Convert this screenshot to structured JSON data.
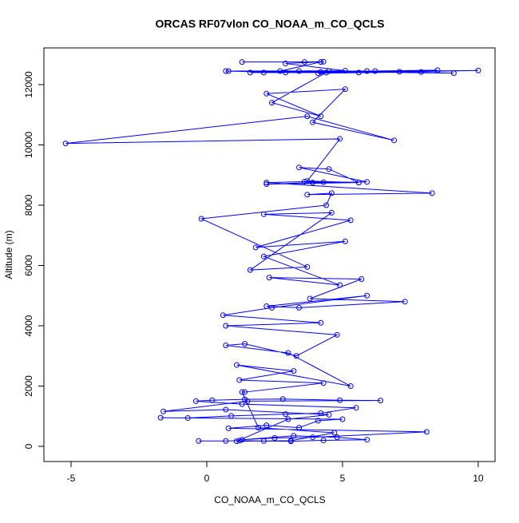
{
  "chart_data": {
    "type": "line",
    "title": "ORCAS RF07vlon CO_NOAA_m_CO_QCLS",
    "x_label": "CO_NOAA_m_CO_QCLS",
    "y_label": "Altitude (m)",
    "color": "#0000ff",
    "x": [
      -0.3,
      0.7,
      1.2,
      2.1,
      3.1,
      4.3,
      5.9,
      4.8,
      3.2,
      1.3,
      2.5,
      3.9,
      8.1,
      0.8,
      2.2,
      3.4,
      4.1,
      5,
      -1.7,
      -0.7,
      0.9,
      2.9,
      4.2,
      5.5,
      1.3,
      -0.4,
      0.2,
      1.4,
      2.8,
      4.9,
      6.4,
      1.5,
      -1.6,
      0.7,
      4.5,
      3,
      1.1,
      3.1,
      4.7,
      1.9,
      1.3,
      1.4,
      4.3,
      1.2,
      3.2,
      1.1,
      5.3,
      3,
      0.7,
      1.4,
      3.3,
      4.8,
      0.7,
      4.2,
      0.6,
      2.4,
      5.9,
      2.2,
      3.4,
      7.3,
      3.8,
      5.7,
      2.3,
      4.9,
      2.1,
      5.1,
      1.8,
      5.3,
      2.1,
      4.6,
      1.6,
      3.7,
      -0.2,
      4.4,
      4.6,
      3.7,
      8.3,
      2.2,
      3.6,
      4.3,
      5.6,
      2.2,
      3.9,
      5.9,
      3.4,
      4.5,
      5.6,
      3.7,
      4.9,
      -5.2,
      3.7,
      6.9,
      3.9,
      5.1,
      2.2,
      4.2,
      2.4,
      4.4,
      0.7,
      2.9,
      4.5,
      6.2,
      8.5,
      2.1,
      4.2,
      10,
      5.6,
      1.6,
      5.9,
      3.4,
      7.1,
      9.1,
      2.7,
      4.2,
      1.3,
      3.6,
      4.3,
      2.9,
      5.1,
      0.8,
      7.9,
      4.1
    ],
    "values": [
      180,
      180,
      190,
      180,
      170,
      200,
      220,
      300,
      350,
      220,
      280,
      300,
      480,
      600,
      700,
      620,
      850,
      900,
      950,
      940,
      1010,
      1070,
      1100,
      1280,
      1400,
      1500,
      1530,
      1560,
      1570,
      1530,
      1520,
      1500,
      1160,
      1220,
      1050,
      900,
      170,
      190,
      450,
      620,
      1800,
      1800,
      2100,
      2200,
      2500,
      2700,
      2000,
      3100,
      3350,
      3400,
      3000,
      3700,
      4000,
      4100,
      4350,
      4600,
      5000,
      4650,
      4600,
      4800,
      4900,
      5550,
      5600,
      5350,
      6300,
      6800,
      6600,
      7500,
      7700,
      7750,
      5850,
      5950,
      7550,
      8000,
      8400,
      8350,
      8400,
      8750,
      8780,
      8760,
      8750,
      8700,
      8750,
      8770,
      9250,
      9200,
      8750,
      8800,
      10200,
      10050,
      10950,
      10150,
      10750,
      11850,
      11700,
      10950,
      11400,
      12400,
      12450,
      12400,
      12450,
      12450,
      12480,
      12400,
      12420,
      12470,
      12400,
      12400,
      12450,
      12450,
      12430,
      12380,
      12450,
      12750,
      12750,
      12750,
      12760,
      12700,
      12460,
      12450,
      12420,
      12380
    ],
    "xlim": [
      -6,
      10.62
    ],
    "ylim": [
      -503,
      13218
    ],
    "xticks": [
      -5,
      0,
      5,
      10
    ],
    "yticks": [
      0,
      2000,
      4000,
      6000,
      8000,
      10000,
      12000
    ]
  }
}
